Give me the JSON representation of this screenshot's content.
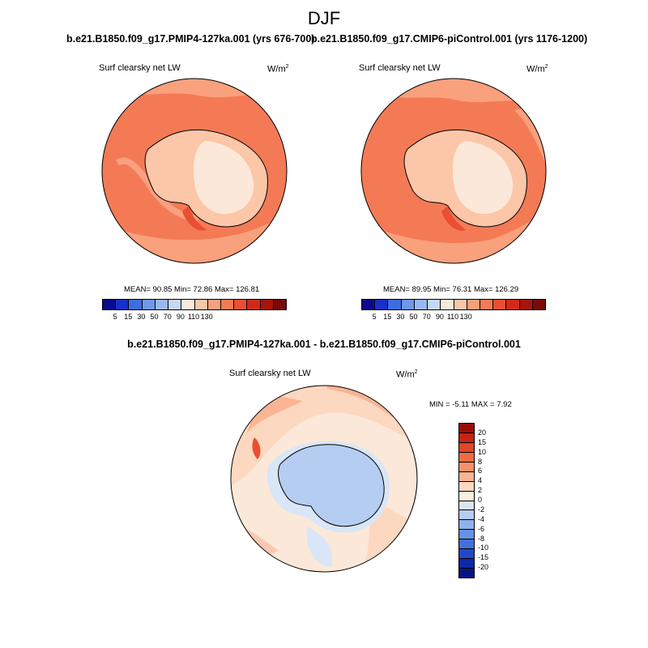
{
  "title": "DJF",
  "panel_left": {
    "case_title": "b.e21.B1850.f09_g17.PMIP4-127ka.001 (yrs 676-700)",
    "variable": "Surf clearsky net LW",
    "units": "W/m",
    "units_exp": "2",
    "stats": "MEAN=  90.85  Min=  72.86  Max= 126.81"
  },
  "panel_right": {
    "case_title": "b.e21.B1850.f09_g17.CMIP6-piControl.001 (yrs 1176-1200)",
    "variable": "Surf clearsky net LW",
    "units": "W/m",
    "units_exp": "2",
    "stats": "MEAN=  89.95  Min=  76.31  Max= 126.29"
  },
  "panel_diff": {
    "case_title": "b.e21.B1850.f09_g17.PMIP4-127ka.001 - b.e21.B1850.f09_g17.CMIP6-piControl.001",
    "variable": "Surf clearsky net LW",
    "units": "W/m",
    "units_exp": "2",
    "stats": "MIN =  -5.11 MAX =   7.92"
  },
  "abs_colorbar": {
    "colors": [
      "#0a0a8c",
      "#1a2fc8",
      "#3d6ee0",
      "#6e98ea",
      "#9ab8f0",
      "#c6d8f5",
      "#fbe8d8",
      "#fcc6a8",
      "#f9a07c",
      "#f47a56",
      "#ea4f32",
      "#d22a18",
      "#a8140a",
      "#7a0a06"
    ],
    "labels": [
      "5",
      "15",
      "30",
      "50",
      "70",
      "90",
      "110",
      "130"
    ]
  },
  "diff_colorbar": {
    "colors": [
      "#9a0c06",
      "#c42414",
      "#e0462a",
      "#f06a44",
      "#f7916a",
      "#fbb494",
      "#fdd8c0",
      "#fbeee2",
      "#d8e6f8",
      "#b6cdf2",
      "#90b0ec",
      "#6a90e4",
      "#4470da",
      "#2248c8",
      "#0c28a8",
      "#061484"
    ],
    "labels": [
      "20",
      "15",
      "10",
      "8",
      "6",
      "4",
      "2",
      "0",
      "-2",
      "-4",
      "-6",
      "-8",
      "-10",
      "-15",
      "-20"
    ]
  }
}
